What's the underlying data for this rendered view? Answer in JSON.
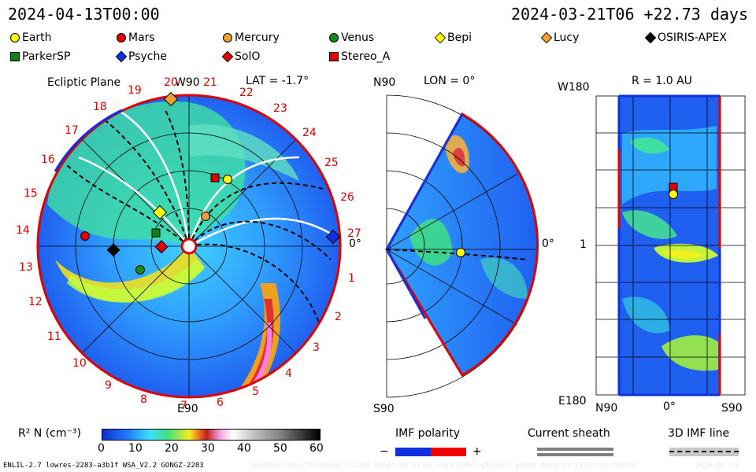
{
  "header": {
    "left_time": "2024-04-13T00:00",
    "right_time": "2024-03-21T06 +22.73 days"
  },
  "legend": [
    {
      "name": "Earth",
      "color": "#ffff00",
      "shape": "circle"
    },
    {
      "name": "Mars",
      "color": "#e00000",
      "shape": "circle"
    },
    {
      "name": "Mercury",
      "color": "#f0a030",
      "shape": "circle"
    },
    {
      "name": "Venus",
      "color": "#109010",
      "shape": "circle"
    },
    {
      "name": "Bepi",
      "color": "#ffff00",
      "shape": "diamond"
    },
    {
      "name": "Lucy",
      "color": "#f0a030",
      "shape": "diamond"
    },
    {
      "name": "OSIRIS-APEX",
      "color": "#000000",
      "shape": "diamond"
    },
    {
      "name": "ParkerSP",
      "color": "#108010",
      "shape": "square"
    },
    {
      "name": "Psyche",
      "color": "#1030e0",
      "shape": "diamond"
    },
    {
      "name": "SolO",
      "color": "#e00000",
      "shape": "diamond"
    },
    {
      "name": "Stereo_A",
      "color": "#e00000",
      "shape": "square"
    }
  ],
  "ecliptic": {
    "title": "Ecliptic Plane",
    "lat": "LAT = -1.7°",
    "w90": "W90",
    "e90": "E90",
    "zero": "0°",
    "carrington_labels": [
      "1",
      "2",
      "3",
      "4",
      "5",
      "6",
      "7",
      "8",
      "9",
      "10",
      "11",
      "12",
      "13",
      "14",
      "15",
      "16",
      "17",
      "18",
      "19",
      "20",
      "21",
      "22",
      "23",
      "24",
      "25",
      "26",
      "27"
    ]
  },
  "meridional": {
    "n90": "N90",
    "s90": "S90",
    "lon": "LON = 0°",
    "zero": "0°"
  },
  "radial": {
    "title": "R = 1.0 AU",
    "w180": "W180",
    "e180": "E180",
    "one": "1",
    "n90": "N90",
    "zero": "0°",
    "s90": "S90"
  },
  "colorbar": {
    "label": "R² N (cm⁻³)",
    "ticks": [
      "0",
      "10",
      "20",
      "30",
      "40",
      "50",
      "60"
    ]
  },
  "bottom_legend": {
    "imf_title": "IMF polarity",
    "minus": "−",
    "plus": "+",
    "sheath_title": "Current sheath",
    "imf3d_title": "3D IMF line"
  },
  "footer": {
    "model": "ENLIL-2.7 lowres-2283-a3b1f WSA_V2.2 GONGZ-2283",
    "run": "20240413/00/256x30x90/1 2283 a3b1f 16 filer/tune1cd=1.g53qb02.gongz-2024-03-21T22:35:00/00",
    "stamp": "2024-04-13"
  }
}
